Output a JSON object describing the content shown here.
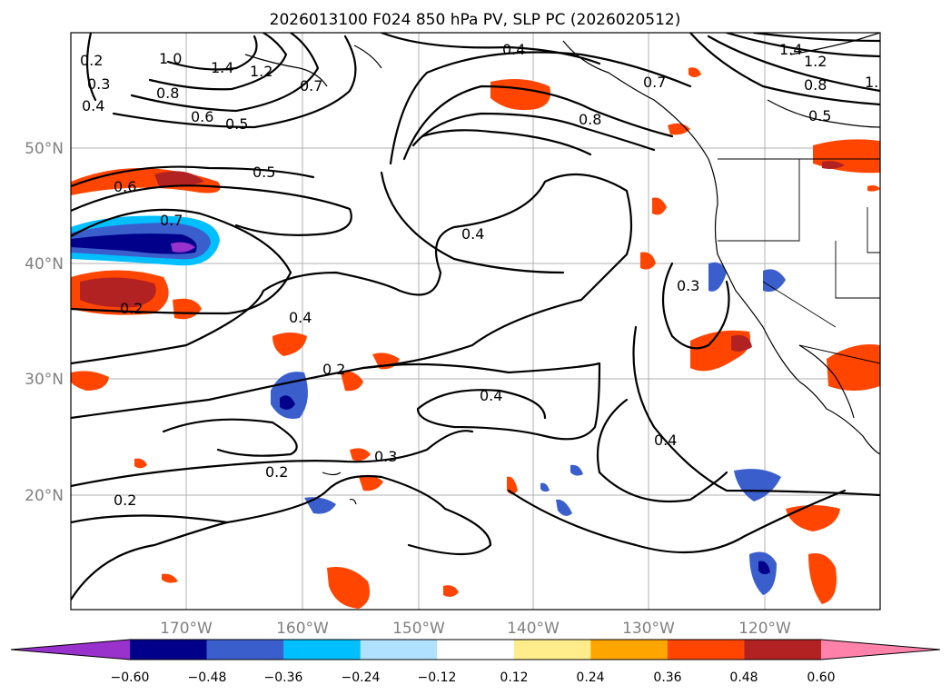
{
  "title": "2026013100 F024 850 hPa PV, SLP PC (2026020512)",
  "map": {
    "lat_labels": [
      "50°N",
      "40°N",
      "30°N",
      "20°N"
    ],
    "lon_labels": [
      "170°W",
      "160°W",
      "150°W",
      "140°W",
      "130°W",
      "120°W"
    ],
    "contour_labels": [
      "0.2",
      "1.0",
      "1.4",
      "1.2",
      "0.4",
      "0.3",
      "0.8",
      "0.6",
      "0.5",
      "0.7",
      "0.4",
      "0.7",
      "0.8",
      "1.4",
      "1.2",
      "0.8",
      "1.",
      "0.5",
      "0.5",
      "0.6",
      "0.7",
      "0.4",
      "0.3",
      "0.2",
      "0.4",
      "0.2",
      "0.4",
      "0.4",
      "0.3",
      "0.2",
      "0.2"
    ]
  },
  "colorbar": {
    "ticks": [
      "−0.60",
      "−0.48",
      "−0.36",
      "−0.24",
      "−0.12",
      "0.12",
      "0.24",
      "0.36",
      "0.48",
      "0.60"
    ],
    "colors": [
      "#9932cc",
      "#00008b",
      "#3a5fcd",
      "#00bfff",
      "#b0e2ff",
      "#ffffff",
      "#ffec8b",
      "#ffa500",
      "#ff4500",
      "#b22222",
      "#ff82ab"
    ]
  }
}
